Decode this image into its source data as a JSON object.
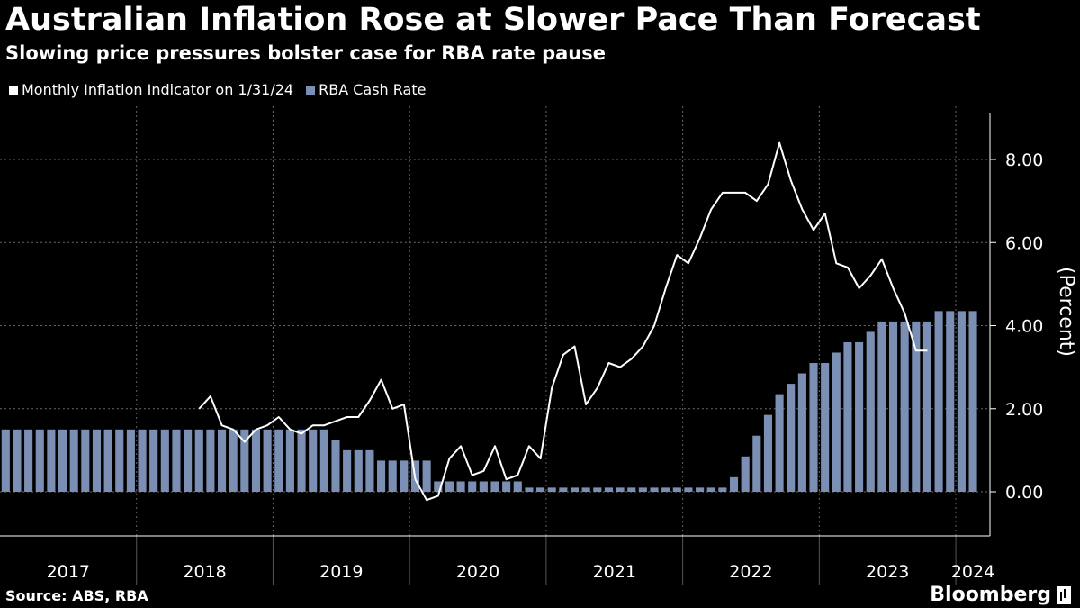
{
  "header": {
    "title": "Australian Inflation Rose at Slower Pace Than Forecast",
    "subtitle": "Slowing price pressures bolster case for RBA rate pause"
  },
  "legend": {
    "items": [
      {
        "label": "Monthly Inflation Indicator on 1/31/24",
        "color": "#ffffff"
      },
      {
        "label": "RBA Cash Rate",
        "color": "#7a8fb3"
      }
    ]
  },
  "footer": {
    "source": "Source: ABS, RBA",
    "brand": "Bloomberg"
  },
  "chart_data": {
    "type": "bar+line",
    "title": "Australian Inflation Rose at Slower Pace Than Forecast",
    "subtitle": "Slowing price pressures bolster case for RBA rate pause",
    "ylabel": "(Percent)",
    "ylim": [
      -1,
      9
    ],
    "yticks": [
      "8.00",
      "6.00",
      "4.00",
      "2.00",
      "0.00"
    ],
    "ytick_values": [
      8,
      6,
      4,
      2,
      0
    ],
    "xticks": [
      "2017",
      "2018",
      "2019",
      "2020",
      "2021",
      "2022",
      "2023",
      "2024"
    ],
    "x_range": [
      "2017-01",
      "2024-04"
    ],
    "grid": true,
    "legend_position": "top-left",
    "bar_series": {
      "name": "RBA Cash Rate",
      "color": "#7a8fb3",
      "values": [
        [
          "2017-01",
          1.5
        ],
        [
          "2017-02",
          1.5
        ],
        [
          "2017-03",
          1.5
        ],
        [
          "2017-04",
          1.5
        ],
        [
          "2017-05",
          1.5
        ],
        [
          "2017-06",
          1.5
        ],
        [
          "2017-07",
          1.5
        ],
        [
          "2017-08",
          1.5
        ],
        [
          "2017-09",
          1.5
        ],
        [
          "2017-10",
          1.5
        ],
        [
          "2017-11",
          1.5
        ],
        [
          "2017-12",
          1.5
        ],
        [
          "2018-01",
          1.5
        ],
        [
          "2018-02",
          1.5
        ],
        [
          "2018-03",
          1.5
        ],
        [
          "2018-04",
          1.5
        ],
        [
          "2018-05",
          1.5
        ],
        [
          "2018-06",
          1.5
        ],
        [
          "2018-07",
          1.5
        ],
        [
          "2018-08",
          1.5
        ],
        [
          "2018-09",
          1.5
        ],
        [
          "2018-10",
          1.5
        ],
        [
          "2018-11",
          1.5
        ],
        [
          "2018-12",
          1.5
        ],
        [
          "2019-01",
          1.5
        ],
        [
          "2019-02",
          1.5
        ],
        [
          "2019-03",
          1.5
        ],
        [
          "2019-04",
          1.5
        ],
        [
          "2019-05",
          1.5
        ],
        [
          "2019-06",
          1.25
        ],
        [
          "2019-07",
          1.0
        ],
        [
          "2019-08",
          1.0
        ],
        [
          "2019-09",
          1.0
        ],
        [
          "2019-10",
          0.75
        ],
        [
          "2019-11",
          0.75
        ],
        [
          "2019-12",
          0.75
        ],
        [
          "2020-01",
          0.75
        ],
        [
          "2020-02",
          0.75
        ],
        [
          "2020-03",
          0.25
        ],
        [
          "2020-04",
          0.25
        ],
        [
          "2020-05",
          0.25
        ],
        [
          "2020-06",
          0.25
        ],
        [
          "2020-07",
          0.25
        ],
        [
          "2020-08",
          0.25
        ],
        [
          "2020-09",
          0.25
        ],
        [
          "2020-10",
          0.25
        ],
        [
          "2020-11",
          0.1
        ],
        [
          "2020-12",
          0.1
        ],
        [
          "2021-01",
          0.1
        ],
        [
          "2021-02",
          0.1
        ],
        [
          "2021-03",
          0.1
        ],
        [
          "2021-04",
          0.1
        ],
        [
          "2021-05",
          0.1
        ],
        [
          "2021-06",
          0.1
        ],
        [
          "2021-07",
          0.1
        ],
        [
          "2021-08",
          0.1
        ],
        [
          "2021-09",
          0.1
        ],
        [
          "2021-10",
          0.1
        ],
        [
          "2021-11",
          0.1
        ],
        [
          "2021-12",
          0.1
        ],
        [
          "2022-01",
          0.1
        ],
        [
          "2022-02",
          0.1
        ],
        [
          "2022-03",
          0.1
        ],
        [
          "2022-04",
          0.1
        ],
        [
          "2022-05",
          0.35
        ],
        [
          "2022-06",
          0.85
        ],
        [
          "2022-07",
          1.35
        ],
        [
          "2022-08",
          1.85
        ],
        [
          "2022-09",
          2.35
        ],
        [
          "2022-10",
          2.6
        ],
        [
          "2022-11",
          2.85
        ],
        [
          "2022-12",
          3.1
        ],
        [
          "2023-01",
          3.1
        ],
        [
          "2023-02",
          3.35
        ],
        [
          "2023-03",
          3.6
        ],
        [
          "2023-04",
          3.6
        ],
        [
          "2023-05",
          3.85
        ],
        [
          "2023-06",
          4.1
        ],
        [
          "2023-07",
          4.1
        ],
        [
          "2023-08",
          4.1
        ],
        [
          "2023-09",
          4.1
        ],
        [
          "2023-10",
          4.1
        ],
        [
          "2023-11",
          4.35
        ],
        [
          "2023-12",
          4.35
        ],
        [
          "2024-01",
          4.35
        ],
        [
          "2024-02",
          4.35
        ]
      ]
    },
    "line_series": {
      "name": "Monthly Inflation Indicator on 1/31/24",
      "color": "#ffffff",
      "values": [
        [
          "2018-06",
          2.0
        ],
        [
          "2018-07",
          2.3
        ],
        [
          "2018-08",
          1.6
        ],
        [
          "2018-09",
          1.5
        ],
        [
          "2018-10",
          1.2
        ],
        [
          "2018-11",
          1.5
        ],
        [
          "2018-12",
          1.6
        ],
        [
          "2019-01",
          1.8
        ],
        [
          "2019-02",
          1.5
        ],
        [
          "2019-03",
          1.4
        ],
        [
          "2019-04",
          1.6
        ],
        [
          "2019-05",
          1.6
        ],
        [
          "2019-06",
          1.7
        ],
        [
          "2019-07",
          1.8
        ],
        [
          "2019-08",
          1.8
        ],
        [
          "2019-09",
          2.2
        ],
        [
          "2019-10",
          2.7
        ],
        [
          "2019-11",
          2.0
        ],
        [
          "2019-12",
          2.1
        ],
        [
          "2020-01",
          0.3
        ],
        [
          "2020-02",
          -0.2
        ],
        [
          "2020-03",
          -0.1
        ],
        [
          "2020-04",
          0.8
        ],
        [
          "2020-05",
          1.1
        ],
        [
          "2020-06",
          0.4
        ],
        [
          "2020-07",
          0.5
        ],
        [
          "2020-08",
          1.1
        ],
        [
          "2020-09",
          0.3
        ],
        [
          "2020-10",
          0.4
        ],
        [
          "2020-11",
          1.1
        ],
        [
          "2020-12",
          0.8
        ],
        [
          "2021-01",
          2.5
        ],
        [
          "2021-02",
          3.3
        ],
        [
          "2021-03",
          3.5
        ],
        [
          "2021-04",
          2.1
        ],
        [
          "2021-05",
          2.5
        ],
        [
          "2021-06",
          3.1
        ],
        [
          "2021-07",
          3.0
        ],
        [
          "2021-08",
          3.2
        ],
        [
          "2021-09",
          3.5
        ],
        [
          "2021-10",
          4.0
        ],
        [
          "2021-11",
          4.9
        ],
        [
          "2021-12",
          5.7
        ],
        [
          "2022-01",
          5.5
        ],
        [
          "2022-02",
          6.1
        ],
        [
          "2022-03",
          6.8
        ],
        [
          "2022-04",
          7.2
        ],
        [
          "2022-05",
          7.2
        ],
        [
          "2022-06",
          7.2
        ],
        [
          "2022-07",
          7.0
        ],
        [
          "2022-08",
          7.4
        ],
        [
          "2022-09",
          8.4
        ],
        [
          "2022-10",
          7.5
        ],
        [
          "2022-11",
          6.8
        ],
        [
          "2022-12",
          6.3
        ],
        [
          "2023-01",
          6.7
        ],
        [
          "2023-02",
          5.5
        ],
        [
          "2023-03",
          5.4
        ],
        [
          "2023-04",
          4.9
        ],
        [
          "2023-05",
          5.2
        ],
        [
          "2023-06",
          5.6
        ],
        [
          "2023-07",
          4.9
        ],
        [
          "2023-08",
          4.3
        ],
        [
          "2023-09",
          3.4
        ],
        [
          "2023-10",
          3.4
        ]
      ]
    }
  }
}
